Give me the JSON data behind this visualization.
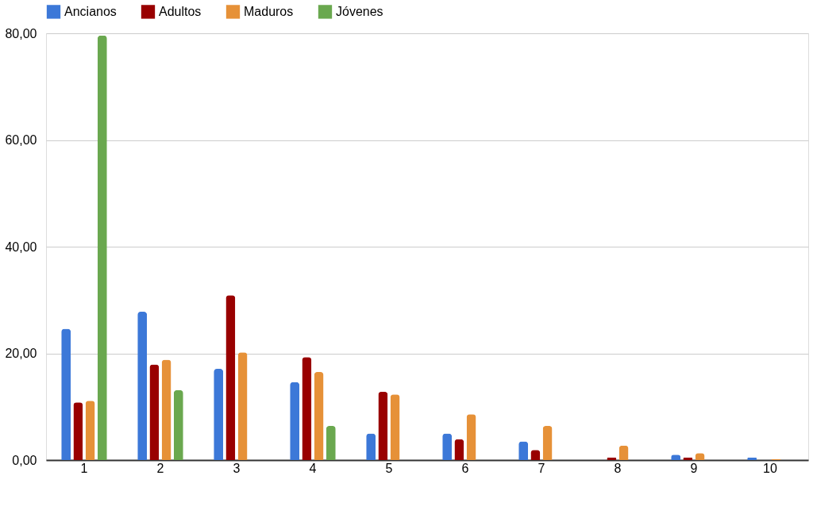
{
  "chart_data": {
    "type": "bar",
    "categories": [
      "1",
      "2",
      "3",
      "4",
      "5",
      "6",
      "7",
      "8",
      "9",
      "10"
    ],
    "series": [
      {
        "name": "Ancianos",
        "color": "#3c78d8",
        "values": [
          24.6,
          27.8,
          17.1,
          14.6,
          5.0,
          5.0,
          3.5,
          null,
          1.0,
          0.5
        ]
      },
      {
        "name": "Adultos",
        "color": "#990000",
        "values": [
          10.8,
          17.9,
          30.9,
          19.3,
          12.8,
          3.9,
          1.9,
          0.5,
          0.5,
          null
        ]
      },
      {
        "name": "Maduros",
        "color": "#e69138",
        "values": [
          11.1,
          18.8,
          20.2,
          16.5,
          12.3,
          8.6,
          6.4,
          2.7,
          1.3,
          0.2
        ]
      },
      {
        "name": "Jóvenes",
        "color": "#6aa84f",
        "values": [
          79.6,
          13.1,
          null,
          6.4,
          null,
          null,
          null,
          null,
          null,
          null
        ]
      }
    ],
    "ylim": [
      0,
      80
    ],
    "yticks": [
      {
        "value": 0,
        "label": "0,00"
      },
      {
        "value": 20,
        "label": "20,00"
      },
      {
        "value": 40,
        "label": "40,00"
      },
      {
        "value": 60,
        "label": "60,00"
      },
      {
        "value": 80,
        "label": "80,00"
      }
    ],
    "grid": "y",
    "legend": "top"
  }
}
